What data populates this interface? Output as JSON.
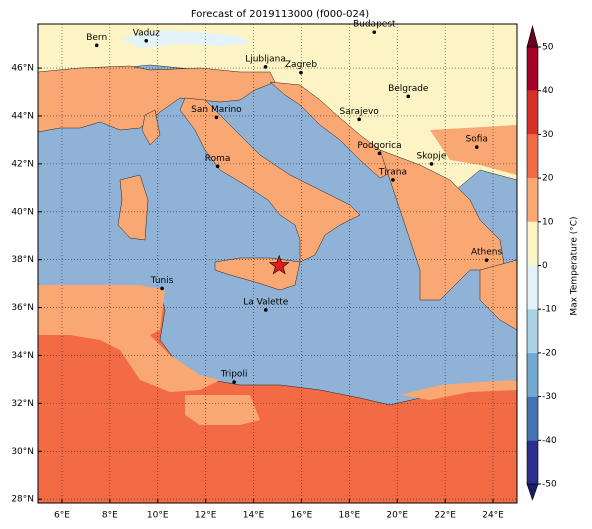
{
  "chart_data": {
    "type": "map",
    "title": "Forecast of 2019113000 (f000-024)",
    "xlim": [
      5,
      25
    ],
    "ylim": [
      27.84,
      47.84
    ],
    "xticks": [
      {
        "value": 6,
        "label": "6°E"
      },
      {
        "value": 8,
        "label": "8°E"
      },
      {
        "value": 10,
        "label": "10°E"
      },
      {
        "value": 12,
        "label": "12°E"
      },
      {
        "value": 14,
        "label": "14°E"
      },
      {
        "value": 16,
        "label": "16°E"
      },
      {
        "value": 18,
        "label": "18°E"
      },
      {
        "value": 20,
        "label": "20°E"
      },
      {
        "value": 22,
        "label": "22°E"
      },
      {
        "value": 24,
        "label": "24°E"
      }
    ],
    "yticks": [
      {
        "value": 28,
        "label": "28°N"
      },
      {
        "value": 30,
        "label": "30°N"
      },
      {
        "value": 32,
        "label": "32°N"
      },
      {
        "value": 34,
        "label": "34°N"
      },
      {
        "value": 36,
        "label": "36°N"
      },
      {
        "value": 38,
        "label": "38°N"
      },
      {
        "value": 40,
        "label": "40°N"
      },
      {
        "value": 42,
        "label": "42°N"
      },
      {
        "value": 44,
        "label": "44°N"
      },
      {
        "value": 46,
        "label": "46°N"
      }
    ],
    "grid": true,
    "cities": [
      {
        "name": "Bern",
        "lon": 7.45,
        "lat": 46.95
      },
      {
        "name": "Vaduz",
        "lon": 9.52,
        "lat": 47.14
      },
      {
        "name": "Budapest",
        "lon": 19.04,
        "lat": 47.5
      },
      {
        "name": "Ljubljana",
        "lon": 14.5,
        "lat": 46.05
      },
      {
        "name": "Zagreb",
        "lon": 15.98,
        "lat": 45.81
      },
      {
        "name": "Belgrade",
        "lon": 20.46,
        "lat": 44.82
      },
      {
        "name": "San Marino",
        "lon": 12.45,
        "lat": 43.94
      },
      {
        "name": "Sarajevo",
        "lon": 18.41,
        "lat": 43.86
      },
      {
        "name": "Podgorica",
        "lon": 19.26,
        "lat": 42.44
      },
      {
        "name": "Skopje",
        "lon": 21.43,
        "lat": 42.0
      },
      {
        "name": "Sofia",
        "lon": 23.32,
        "lat": 42.7
      },
      {
        "name": "Roma",
        "lon": 12.5,
        "lat": 41.9
      },
      {
        "name": "Tirana",
        "lon": 19.82,
        "lat": 41.33
      },
      {
        "name": "Athens",
        "lon": 23.73,
        "lat": 37.98
      },
      {
        "name": "Tunis",
        "lon": 10.18,
        "lat": 36.8
      },
      {
        "name": "La Valette",
        "lon": 14.51,
        "lat": 35.9
      },
      {
        "name": "Tripoli",
        "lon": 13.19,
        "lat": 32.89
      }
    ],
    "marker": {
      "lon": 15.07,
      "lat": 37.75,
      "color": "#e41a1c"
    },
    "colorbar": {
      "label": "Max Temperature (°C)",
      "clim": [
        -50,
        50
      ],
      "ticks": [
        -50,
        -40,
        -30,
        -20,
        -10,
        0,
        10,
        20,
        30,
        40,
        50
      ],
      "levels": [
        -50,
        -40,
        -30,
        -20,
        -10,
        0,
        10,
        20,
        30,
        40,
        50
      ],
      "colors": [
        "#2d2f8f",
        "#4472b2",
        "#74a9cf",
        "#a9d2e5",
        "#e4f3f7",
        "#fdf4c6",
        "#f9a873",
        "#f26b44",
        "#d63027",
        "#a50026"
      ],
      "under": "#1c1c6b",
      "over": "#6b0020"
    }
  }
}
